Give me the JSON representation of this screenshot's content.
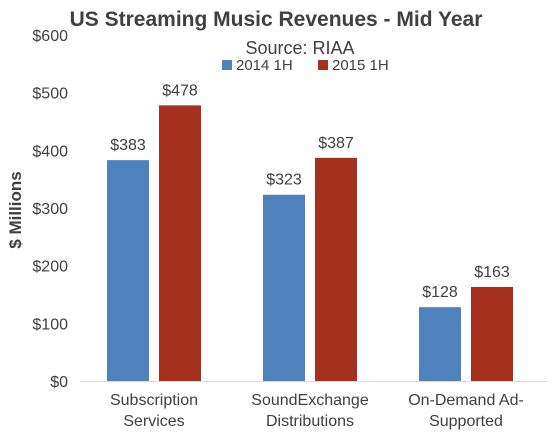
{
  "chart_data": {
    "type": "bar",
    "title": "US Streaming Music Revenues - Mid Year",
    "subtitle": "Source: RIAA",
    "ylabel": "$ Millions",
    "xlabel": "",
    "categories": [
      [
        "Subscription",
        "Services"
      ],
      [
        "SoundExchange",
        "Distributions"
      ],
      [
        "On-Demand Ad-",
        "Supported"
      ]
    ],
    "series": [
      {
        "name": "2014 1H",
        "color": "#4F81BD",
        "values": [
          383,
          323,
          128
        ]
      },
      {
        "name": "2015 1H",
        "color": "#A5301E",
        "values": [
          478,
          387,
          163
        ]
      }
    ],
    "ylim": [
      0,
      600
    ],
    "yticks": [
      0,
      100,
      200,
      300,
      400,
      500,
      600
    ],
    "ytick_labels": [
      "$0",
      "$100",
      "$200",
      "$300",
      "$400",
      "$500",
      "$600"
    ],
    "value_prefix": "$",
    "grid": false,
    "legend_position": "top-center"
  }
}
